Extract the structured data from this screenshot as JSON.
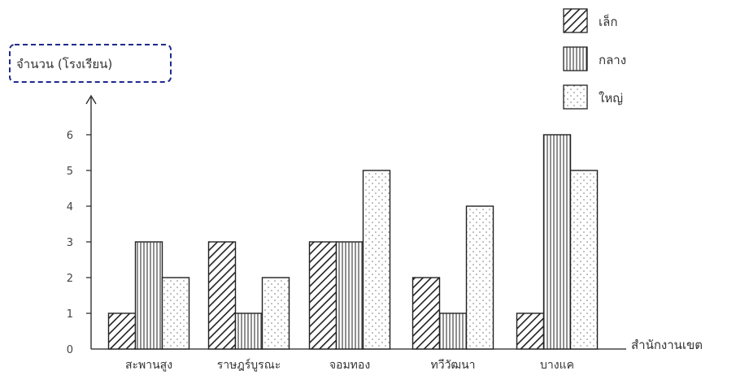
{
  "chart_data": {
    "type": "bar",
    "ylabel": "จำนวน (โรงเรียน)",
    "xlabel": "สำนักงานเขต",
    "ylim": [
      0,
      6.6
    ],
    "yticks": [
      0,
      1,
      2,
      3,
      4,
      5,
      6
    ],
    "categories": [
      "สะพานสูง",
      "ราษฎร์บูรณะ",
      "จอมทอง",
      "ทวีวัฒนา",
      "บางแค"
    ],
    "series": [
      {
        "name": "เล็ก",
        "pattern": "diagonal-hatch",
        "values": [
          1,
          3,
          3,
          2,
          1
        ]
      },
      {
        "name": "กลาง",
        "pattern": "vertical-lines",
        "values": [
          3,
          1,
          3,
          1,
          6
        ]
      },
      {
        "name": "ใหญ่",
        "pattern": "dots",
        "values": [
          2,
          2,
          5,
          4,
          5
        ]
      }
    ],
    "legend_position": "top-right",
    "grid": false,
    "colors": {
      "stroke": "#222222",
      "background": "#ffffff",
      "highlight_box": "#1e2a8c"
    }
  }
}
